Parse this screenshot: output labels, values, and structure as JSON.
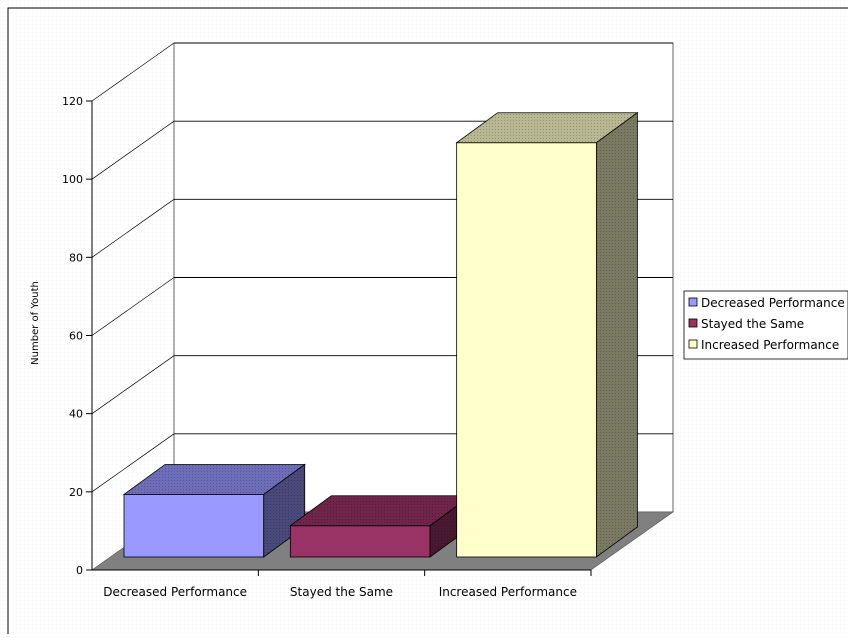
{
  "chart_data": {
    "type": "bar",
    "title": "",
    "xlabel": "",
    "ylabel": "Number of Youth",
    "ylim": [
      0,
      120
    ],
    "yticks": [
      0,
      20,
      40,
      60,
      80,
      100,
      120
    ],
    "categories": [
      "Decreased Performance",
      "Stayed the Same",
      "Increased Performance"
    ],
    "values": [
      16,
      8,
      106
    ],
    "colors": {
      "Decreased Performance": "#9999ff",
      "Stayed the Same": "#993366",
      "Increased Performance": "#ffffcc"
    },
    "three_d": true,
    "grid": true,
    "legend": {
      "position": "right",
      "entries": [
        "Decreased Performance",
        "Stayed the Same",
        "Increased Performance"
      ]
    }
  }
}
